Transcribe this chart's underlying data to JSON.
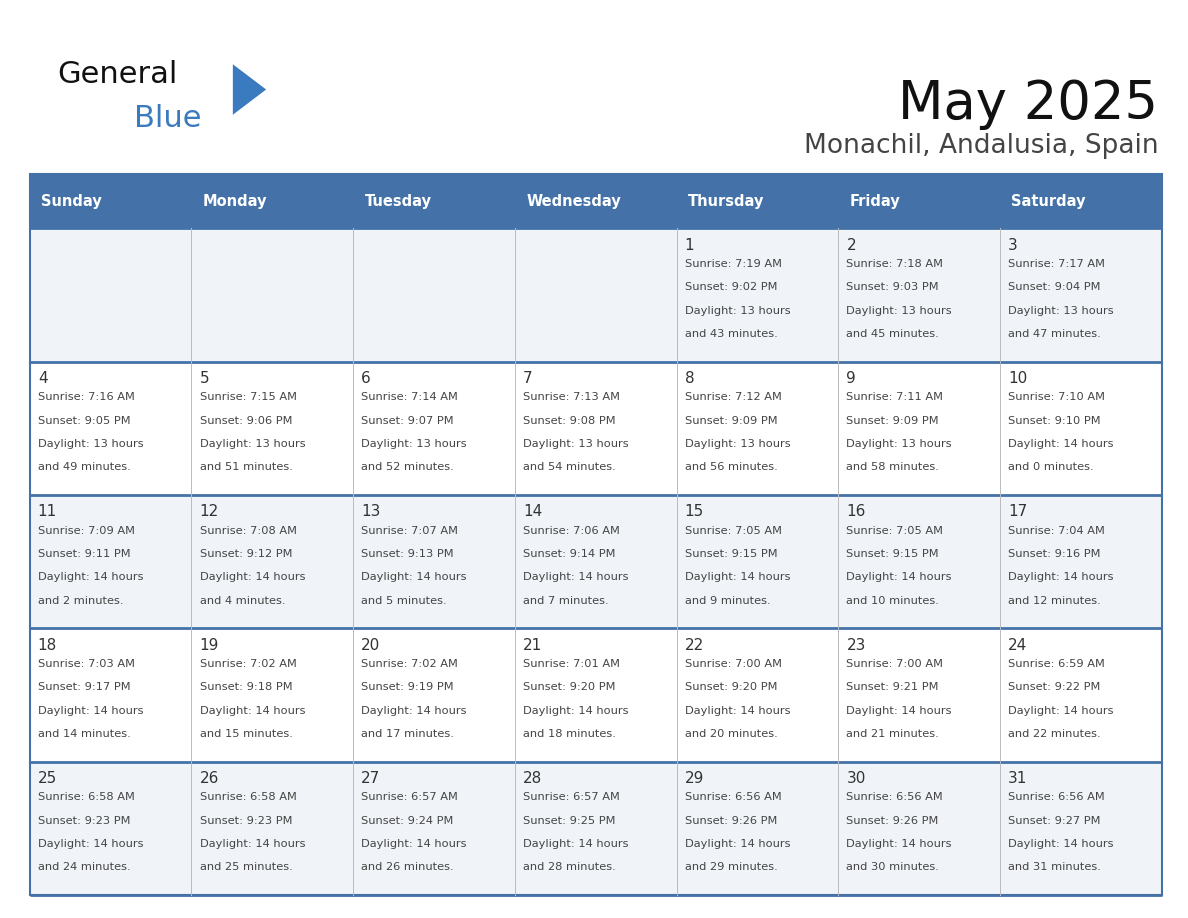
{
  "title": "May 2025",
  "subtitle": "Monachil, Andalusia, Spain",
  "header_color": "#4472a8",
  "header_text_color": "#ffffff",
  "border_color": "#4472a8",
  "row_sep_color": "#4472a8",
  "day_number_color": "#333333",
  "cell_text_color": "#444444",
  "cell_bg_even": "#f0f4f8",
  "cell_bg_odd": "#ffffff",
  "logo_general_color": "#111111",
  "logo_blue_color": "#3a7abf",
  "logo_triangle_color": "#3a7abf",
  "fig_bg_color": "#ffffff",
  "days_of_week": [
    "Sunday",
    "Monday",
    "Tuesday",
    "Wednesday",
    "Thursday",
    "Friday",
    "Saturday"
  ],
  "weeks": [
    [
      {
        "day": "",
        "lines": []
      },
      {
        "day": "",
        "lines": []
      },
      {
        "day": "",
        "lines": []
      },
      {
        "day": "",
        "lines": []
      },
      {
        "day": "1",
        "lines": [
          "Sunrise: 7:19 AM",
          "Sunset: 9:02 PM",
          "Daylight: 13 hours",
          "and 43 minutes."
        ]
      },
      {
        "day": "2",
        "lines": [
          "Sunrise: 7:18 AM",
          "Sunset: 9:03 PM",
          "Daylight: 13 hours",
          "and 45 minutes."
        ]
      },
      {
        "day": "3",
        "lines": [
          "Sunrise: 7:17 AM",
          "Sunset: 9:04 PM",
          "Daylight: 13 hours",
          "and 47 minutes."
        ]
      }
    ],
    [
      {
        "day": "4",
        "lines": [
          "Sunrise: 7:16 AM",
          "Sunset: 9:05 PM",
          "Daylight: 13 hours",
          "and 49 minutes."
        ]
      },
      {
        "day": "5",
        "lines": [
          "Sunrise: 7:15 AM",
          "Sunset: 9:06 PM",
          "Daylight: 13 hours",
          "and 51 minutes."
        ]
      },
      {
        "day": "6",
        "lines": [
          "Sunrise: 7:14 AM",
          "Sunset: 9:07 PM",
          "Daylight: 13 hours",
          "and 52 minutes."
        ]
      },
      {
        "day": "7",
        "lines": [
          "Sunrise: 7:13 AM",
          "Sunset: 9:08 PM",
          "Daylight: 13 hours",
          "and 54 minutes."
        ]
      },
      {
        "day": "8",
        "lines": [
          "Sunrise: 7:12 AM",
          "Sunset: 9:09 PM",
          "Daylight: 13 hours",
          "and 56 minutes."
        ]
      },
      {
        "day": "9",
        "lines": [
          "Sunrise: 7:11 AM",
          "Sunset: 9:09 PM",
          "Daylight: 13 hours",
          "and 58 minutes."
        ]
      },
      {
        "day": "10",
        "lines": [
          "Sunrise: 7:10 AM",
          "Sunset: 9:10 PM",
          "Daylight: 14 hours",
          "and 0 minutes."
        ]
      }
    ],
    [
      {
        "day": "11",
        "lines": [
          "Sunrise: 7:09 AM",
          "Sunset: 9:11 PM",
          "Daylight: 14 hours",
          "and 2 minutes."
        ]
      },
      {
        "day": "12",
        "lines": [
          "Sunrise: 7:08 AM",
          "Sunset: 9:12 PM",
          "Daylight: 14 hours",
          "and 4 minutes."
        ]
      },
      {
        "day": "13",
        "lines": [
          "Sunrise: 7:07 AM",
          "Sunset: 9:13 PM",
          "Daylight: 14 hours",
          "and 5 minutes."
        ]
      },
      {
        "day": "14",
        "lines": [
          "Sunrise: 7:06 AM",
          "Sunset: 9:14 PM",
          "Daylight: 14 hours",
          "and 7 minutes."
        ]
      },
      {
        "day": "15",
        "lines": [
          "Sunrise: 7:05 AM",
          "Sunset: 9:15 PM",
          "Daylight: 14 hours",
          "and 9 minutes."
        ]
      },
      {
        "day": "16",
        "lines": [
          "Sunrise: 7:05 AM",
          "Sunset: 9:15 PM",
          "Daylight: 14 hours",
          "and 10 minutes."
        ]
      },
      {
        "day": "17",
        "lines": [
          "Sunrise: 7:04 AM",
          "Sunset: 9:16 PM",
          "Daylight: 14 hours",
          "and 12 minutes."
        ]
      }
    ],
    [
      {
        "day": "18",
        "lines": [
          "Sunrise: 7:03 AM",
          "Sunset: 9:17 PM",
          "Daylight: 14 hours",
          "and 14 minutes."
        ]
      },
      {
        "day": "19",
        "lines": [
          "Sunrise: 7:02 AM",
          "Sunset: 9:18 PM",
          "Daylight: 14 hours",
          "and 15 minutes."
        ]
      },
      {
        "day": "20",
        "lines": [
          "Sunrise: 7:02 AM",
          "Sunset: 9:19 PM",
          "Daylight: 14 hours",
          "and 17 minutes."
        ]
      },
      {
        "day": "21",
        "lines": [
          "Sunrise: 7:01 AM",
          "Sunset: 9:20 PM",
          "Daylight: 14 hours",
          "and 18 minutes."
        ]
      },
      {
        "day": "22",
        "lines": [
          "Sunrise: 7:00 AM",
          "Sunset: 9:20 PM",
          "Daylight: 14 hours",
          "and 20 minutes."
        ]
      },
      {
        "day": "23",
        "lines": [
          "Sunrise: 7:00 AM",
          "Sunset: 9:21 PM",
          "Daylight: 14 hours",
          "and 21 minutes."
        ]
      },
      {
        "day": "24",
        "lines": [
          "Sunrise: 6:59 AM",
          "Sunset: 9:22 PM",
          "Daylight: 14 hours",
          "and 22 minutes."
        ]
      }
    ],
    [
      {
        "day": "25",
        "lines": [
          "Sunrise: 6:58 AM",
          "Sunset: 9:23 PM",
          "Daylight: 14 hours",
          "and 24 minutes."
        ]
      },
      {
        "day": "26",
        "lines": [
          "Sunrise: 6:58 AM",
          "Sunset: 9:23 PM",
          "Daylight: 14 hours",
          "and 25 minutes."
        ]
      },
      {
        "day": "27",
        "lines": [
          "Sunrise: 6:57 AM",
          "Sunset: 9:24 PM",
          "Daylight: 14 hours",
          "and 26 minutes."
        ]
      },
      {
        "day": "28",
        "lines": [
          "Sunrise: 6:57 AM",
          "Sunset: 9:25 PM",
          "Daylight: 14 hours",
          "and 28 minutes."
        ]
      },
      {
        "day": "29",
        "lines": [
          "Sunrise: 6:56 AM",
          "Sunset: 9:26 PM",
          "Daylight: 14 hours",
          "and 29 minutes."
        ]
      },
      {
        "day": "30",
        "lines": [
          "Sunrise: 6:56 AM",
          "Sunset: 9:26 PM",
          "Daylight: 14 hours",
          "and 30 minutes."
        ]
      },
      {
        "day": "31",
        "lines": [
          "Sunrise: 6:56 AM",
          "Sunset: 9:27 PM",
          "Daylight: 14 hours",
          "and 31 minutes."
        ]
      }
    ]
  ]
}
